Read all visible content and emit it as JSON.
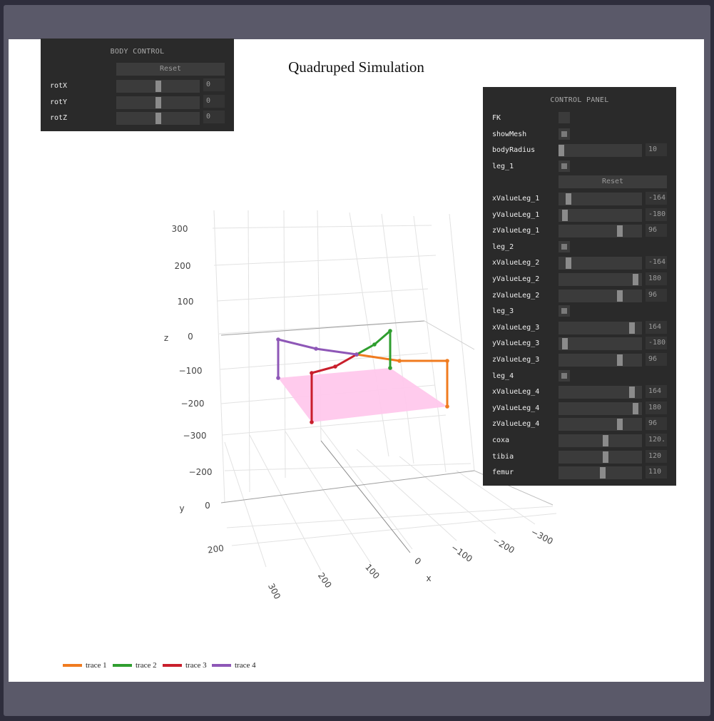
{
  "plot": {
    "title": "Quadruped Simulation",
    "axes": {
      "x": {
        "label": "x",
        "ticks": [
          "300",
          "200",
          "100",
          "0",
          "−100",
          "−200",
          "−300"
        ]
      },
      "y": {
        "label": "y",
        "ticks": [
          "−200",
          "0",
          "200"
        ]
      },
      "z": {
        "label": "z",
        "ticks": [
          "300",
          "200",
          "100",
          "0",
          "−100",
          "−200",
          "−300"
        ]
      }
    },
    "legend": [
      {
        "name": "trace 1",
        "color": "#f07b1f"
      },
      {
        "name": "trace 2",
        "color": "#2f9e2f"
      },
      {
        "name": "trace 3",
        "color": "#c91f2c"
      },
      {
        "name": "trace 4",
        "color": "#8e57b7"
      }
    ],
    "mesh_color": "#ffc8ec"
  },
  "body_control": {
    "title": "BODY CONTROL",
    "reset_label": "Reset",
    "rows": [
      {
        "label": "rotX",
        "value": "0",
        "fraction": 0.5
      },
      {
        "label": "rotY",
        "value": "0",
        "fraction": 0.5
      },
      {
        "label": "rotZ",
        "value": "0",
        "fraction": 0.5
      }
    ]
  },
  "control_panel": {
    "title": "CONTROL PANEL",
    "rows": [
      {
        "type": "checkbox",
        "label": "FK",
        "checked": false
      },
      {
        "type": "checkbox",
        "label": "showMesh",
        "checked": true
      },
      {
        "type": "slider",
        "label": "bodyRadius",
        "value": "10",
        "fraction": 0.0
      },
      {
        "type": "checkbox",
        "label": "leg_1",
        "checked": true
      },
      {
        "type": "reset",
        "label": "Reset"
      },
      {
        "type": "slider",
        "label": "xValueLeg_1",
        "value": "-164",
        "fraction": 0.09
      },
      {
        "type": "slider",
        "label": "yValueLeg_1",
        "value": "-180",
        "fraction": 0.05
      },
      {
        "type": "slider",
        "label": "zValueLeg_1",
        "value": "96",
        "fraction": 0.75
      },
      {
        "type": "checkbox",
        "label": "leg_2",
        "checked": true
      },
      {
        "type": "slider",
        "label": "xValueLeg_2",
        "value": "-164",
        "fraction": 0.09
      },
      {
        "type": "slider",
        "label": "yValueLeg_2",
        "value": "180",
        "fraction": 0.95
      },
      {
        "type": "slider",
        "label": "zValueLeg_2",
        "value": "96",
        "fraction": 0.75
      },
      {
        "type": "checkbox",
        "label": "leg_3",
        "checked": true
      },
      {
        "type": "slider",
        "label": "xValueLeg_3",
        "value": "164",
        "fraction": 0.91
      },
      {
        "type": "slider",
        "label": "yValueLeg_3",
        "value": "-180",
        "fraction": 0.05
      },
      {
        "type": "slider",
        "label": "zValueLeg_3",
        "value": "96",
        "fraction": 0.75
      },
      {
        "type": "checkbox",
        "label": "leg_4",
        "checked": true
      },
      {
        "type": "slider",
        "label": "xValueLeg_4",
        "value": "164",
        "fraction": 0.91
      },
      {
        "type": "slider",
        "label": "yValueLeg_4",
        "value": "180",
        "fraction": 0.95
      },
      {
        "type": "slider",
        "label": "zValueLeg_4",
        "value": "96",
        "fraction": 0.75
      },
      {
        "type": "slider",
        "label": "coxa",
        "value": "120.",
        "fraction": 0.57
      },
      {
        "type": "slider",
        "label": "tibia",
        "value": "120",
        "fraction": 0.57
      },
      {
        "type": "slider",
        "label": "femur",
        "value": "110",
        "fraction": 0.53
      }
    ]
  }
}
